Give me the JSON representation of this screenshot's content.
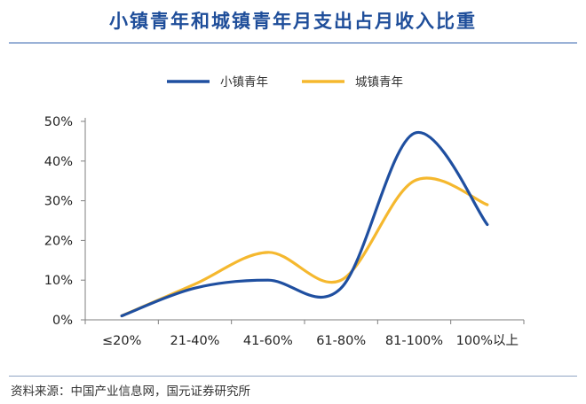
{
  "chart_data": {
    "type": "line",
    "title": "小镇青年和城镇青年月支出占月收入比重",
    "categories": [
      "≤20%",
      "21-40%",
      "41-60%",
      "61-80%",
      "81-100%",
      "100%以上"
    ],
    "y_ticks": [
      "0%",
      "10%",
      "20%",
      "30%",
      "40%",
      "50%"
    ],
    "ylim": [
      0,
      50
    ],
    "series": [
      {
        "name": "小镇青年",
        "color": "#1f4fa0",
        "values": [
          1,
          8,
          10,
          8,
          47,
          24
        ]
      },
      {
        "name": "城镇青年",
        "color": "#f5b82e",
        "values": [
          1,
          9,
          17,
          10,
          35,
          29
        ]
      }
    ],
    "legend_position": "top",
    "grid": false
  },
  "source": "资料来源：中国产业信息网，国元证券研究所"
}
